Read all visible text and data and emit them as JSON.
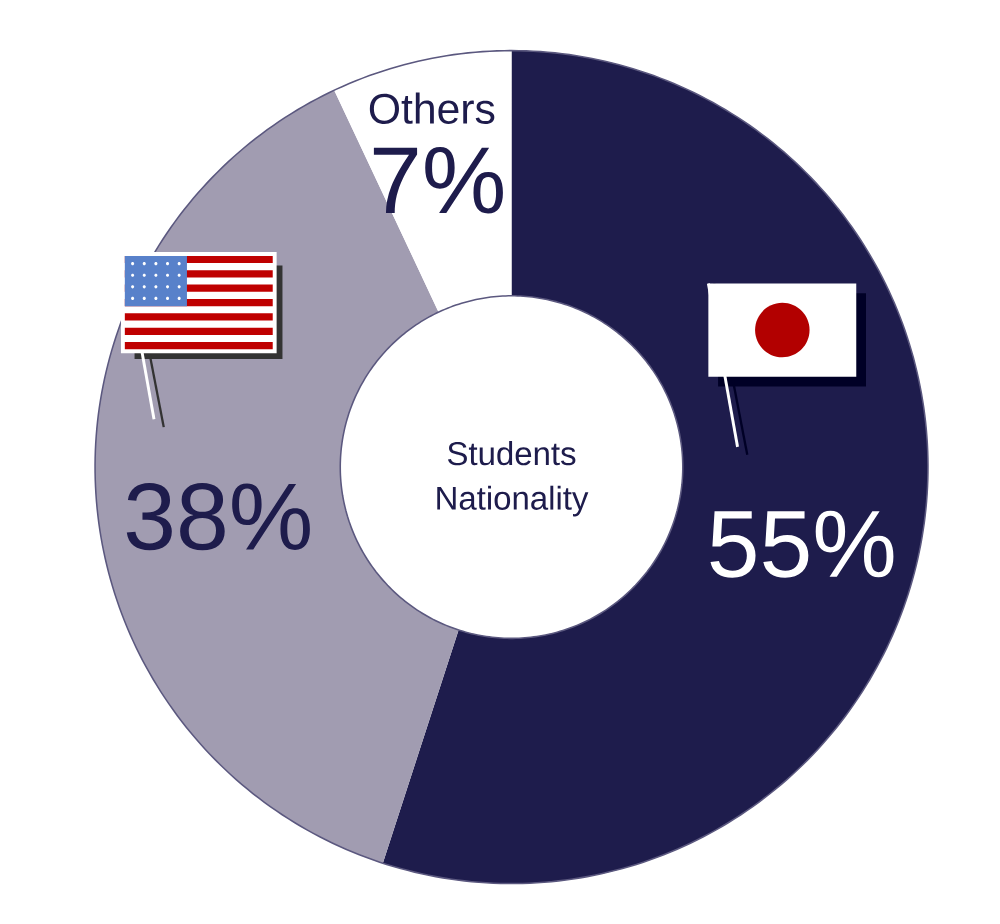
{
  "chart_data": {
    "type": "donut",
    "title": "Students Nationality",
    "categories": [
      null,
      null,
      "Others"
    ],
    "values": [
      55,
      38,
      7
    ],
    "colors": [
      "#1e1c4c",
      "#a19cb1",
      "#ffffff"
    ],
    "value_labels": [
      "55%",
      "38%",
      "7%"
    ]
  }
}
